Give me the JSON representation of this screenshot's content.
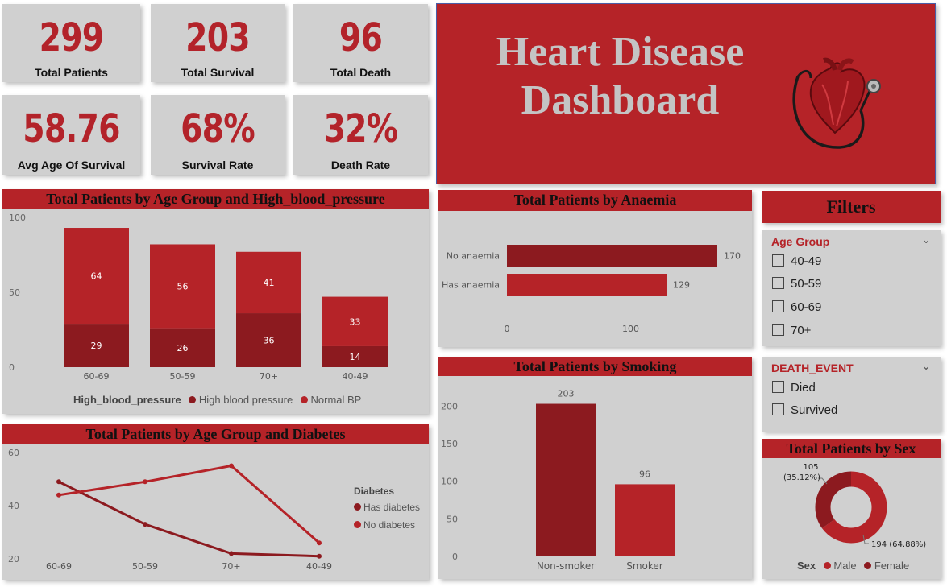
{
  "kpis": [
    {
      "value": "299",
      "label": "Total Patients"
    },
    {
      "value": "203",
      "label": "Total Survival"
    },
    {
      "value": "96",
      "label": "Total Death"
    },
    {
      "value": "58.76",
      "label": "Avg Age Of Survival"
    },
    {
      "value": "68%",
      "label": "Survival Rate"
    },
    {
      "value": "32%",
      "label": "Death Rate"
    }
  ],
  "banner": {
    "line1": "Heart Disease",
    "line2": "Dashboard",
    "icon": "heart-stethoscope-icon"
  },
  "colors": {
    "dark_red": "#8c1a1f",
    "red": "#b52328",
    "card": "#d0d0d0"
  },
  "filters": {
    "title": "Filters",
    "age_group": {
      "label": "Age Group",
      "options": [
        "40-49",
        "50-59",
        "60-69",
        "70+"
      ]
    },
    "death_event": {
      "label": "DEATH_EVENT",
      "options": [
        "Died",
        "Survived"
      ]
    }
  },
  "chart_data": [
    {
      "type": "bar",
      "stacked": true,
      "title": "Total Patients by Age Group and High_blood_pressure",
      "categories": [
        "60-69",
        "50-59",
        "70+",
        "40-49"
      ],
      "series": [
        {
          "name": "High blood pressure",
          "values": [
            29,
            26,
            36,
            14
          ],
          "color": "#8c1a1f"
        },
        {
          "name": "Normal BP",
          "values": [
            64,
            56,
            41,
            33
          ],
          "color": "#b52328"
        }
      ],
      "legend_title": "High_blood_pressure",
      "ylim": [
        0,
        100
      ],
      "yticks": [
        "0",
        "50",
        "100"
      ]
    },
    {
      "type": "bar",
      "orientation": "horizontal",
      "title": "Total Patients by Anaemia",
      "categories": [
        "No anaemia",
        "Has anaemia"
      ],
      "values": [
        170,
        129
      ],
      "labels": [
        "170",
        "129"
      ],
      "xticks": [
        "0",
        "100"
      ]
    },
    {
      "type": "bar",
      "title": "Total Patients by Smoking",
      "categories": [
        "Non-smoker",
        "Smoker"
      ],
      "values": [
        203,
        96
      ],
      "labels": [
        "203",
        "96"
      ],
      "ylim": [
        0,
        225
      ],
      "yticks": [
        "0",
        "50",
        "100",
        "150",
        "200"
      ]
    },
    {
      "type": "line",
      "title": "Total Patients by Age Group and Diabetes",
      "categories": [
        "60-69",
        "50-59",
        "70+",
        "40-49"
      ],
      "series": [
        {
          "name": "Has diabetes",
          "values": [
            49,
            33,
            22,
            21
          ],
          "color": "#8c1a1f"
        },
        {
          "name": "No diabetes",
          "values": [
            44,
            49,
            55,
            26
          ],
          "color": "#b52328"
        }
      ],
      "legend_title": "Diabetes",
      "ylim": [
        20,
        60
      ],
      "yticks": [
        "20",
        "40",
        "60"
      ]
    },
    {
      "type": "pie",
      "donut": true,
      "title": "Total Patients by Sex",
      "categories": [
        "Male",
        "Female"
      ],
      "values": [
        194,
        105
      ],
      "labels": [
        "194 (64.88%)",
        "105 (35.12%)"
      ],
      "legend_title": "Sex"
    }
  ]
}
